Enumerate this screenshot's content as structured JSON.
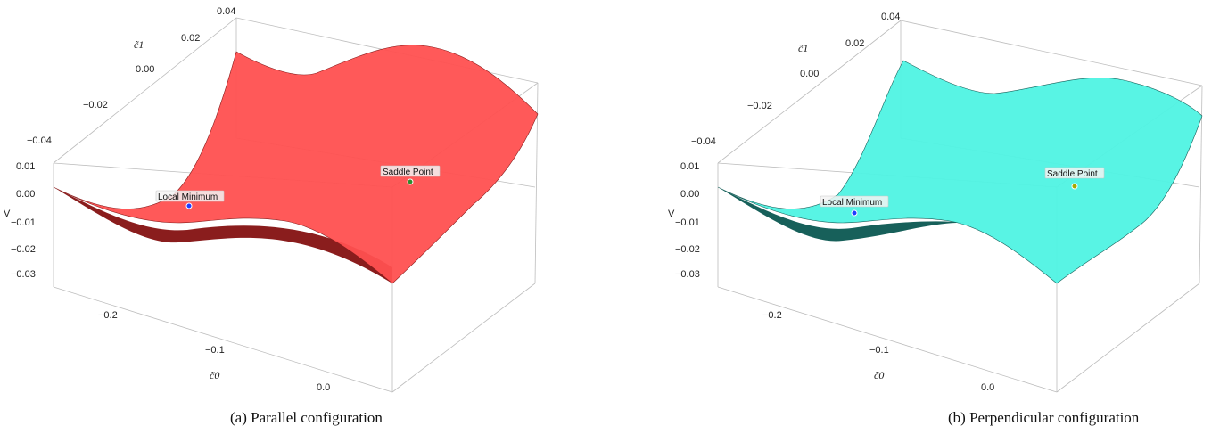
{
  "chart_data": [
    {
      "type": "surface3d",
      "panel": "a",
      "caption": "(a) Parallel configuration",
      "surface_color": "#ff5050",
      "surface_shade": "#8a1d1d",
      "x_axis": {
        "label": "c̃0",
        "ticks": [
          "−0.2",
          "−0.1",
          "0.0"
        ]
      },
      "y_axis": {
        "label": "c̃1",
        "ticks": [
          "0.04",
          "0.02",
          "0.00",
          "−0.02",
          "−0.04"
        ]
      },
      "z_axis": {
        "label": "V",
        "ticks": [
          "0.01",
          "0.00",
          "−0.01",
          "−0.02",
          "−0.03"
        ]
      },
      "annotations": [
        {
          "label": "Local Minimum",
          "marker_color": "#1f3cff"
        },
        {
          "label": "Saddle Point",
          "marker_color": "#2e8b2e"
        }
      ]
    },
    {
      "type": "surface3d",
      "panel": "b",
      "caption": "(b) Perpendicular configuration",
      "surface_color": "#4ff3e3",
      "surface_shade": "#17605a",
      "x_axis": {
        "label": "c̃0",
        "ticks": [
          "−0.2",
          "−0.1",
          "0.0"
        ]
      },
      "y_axis": {
        "label": "c̃1",
        "ticks": [
          "0.04",
          "0.02",
          "0.00",
          "−0.02",
          "−0.04"
        ]
      },
      "z_axis": {
        "label": "V",
        "ticks": [
          "0.01",
          "0.00",
          "−0.01",
          "−0.02",
          "−0.03"
        ]
      },
      "annotations": [
        {
          "label": "Local Minimum",
          "marker_color": "#1f3cff"
        },
        {
          "label": "Saddle Point",
          "marker_color": "#a8a800"
        }
      ]
    }
  ]
}
